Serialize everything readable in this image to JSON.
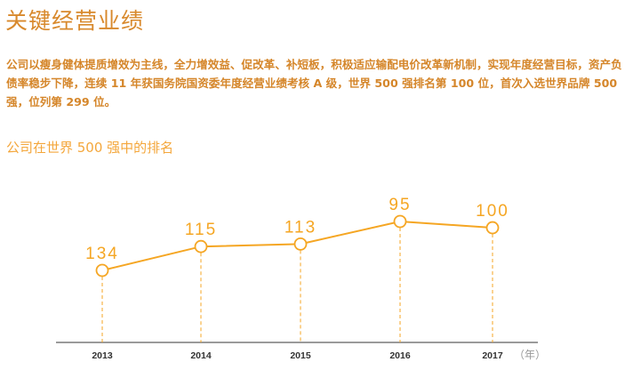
{
  "title": "关键经营业绩",
  "paragraph": "公司以瘦身健体提质增效为主线，全力增效益、促改革、补短板，积极适应输配电价改革新机制，实现年度经营目标，资产负债率稳步下降，连续 11 年获国务院国资委年度经营业绩考核 A 级，世界 500 强排名第 100 位，首次入选世界品牌 500 强，位列第 299 位。",
  "chart_data": {
    "type": "line",
    "title": "公司在世界 500 强中的排名",
    "xlabel": "（年）",
    "ylabel": "",
    "categories": [
      "2013",
      "2014",
      "2015",
      "2016",
      "2017"
    ],
    "values": [
      134,
      115,
      113,
      95,
      100
    ],
    "y_inverted": true,
    "grid": false,
    "colors": {
      "line": "#f5a623",
      "axis": "#9a9a9a",
      "tick": "#333333"
    }
  }
}
